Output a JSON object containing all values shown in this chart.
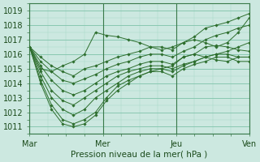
{
  "bg_color": "#cce8e0",
  "grid_color_major": "#88c8b0",
  "grid_color_minor": "#aad8c8",
  "line_color": "#2d6e2d",
  "marker_color": "#2d6e2d",
  "xlabel": "Pression niveau de la mer( hPa )",
  "ylim": [
    1010.5,
    1019.5
  ],
  "yticks": [
    1011,
    1012,
    1013,
    1014,
    1015,
    1016,
    1017,
    1018,
    1019
  ],
  "xlim": [
    0,
    288
  ],
  "day_positions": [
    0,
    96,
    192,
    288
  ],
  "day_labels": [
    "Mar",
    "Mer",
    "Jeu",
    "Ven"
  ],
  "series": [
    [
      1016.5,
      1015.8,
      1015.2,
      1014.8,
      1014.5,
      1015.0,
      1015.2,
      1015.5,
      1015.8,
      1016.0,
      1016.2,
      1016.5,
      1016.5,
      1016.3,
      1016.8,
      1017.2,
      1017.8,
      1018.0,
      1018.2,
      1018.5,
      1018.8
    ],
    [
      1016.5,
      1015.5,
      1014.8,
      1014.2,
      1014.0,
      1014.3,
      1014.6,
      1015.0,
      1015.3,
      1015.5,
      1015.8,
      1016.0,
      1016.0,
      1015.8,
      1016.2,
      1016.5,
      1017.0,
      1017.3,
      1017.5,
      1017.8,
      1018.0
    ],
    [
      1016.5,
      1015.2,
      1014.2,
      1013.5,
      1013.2,
      1013.5,
      1014.0,
      1014.5,
      1014.8,
      1015.0,
      1015.3,
      1015.5,
      1015.5,
      1015.3,
      1015.8,
      1016.0,
      1016.5,
      1016.6,
      1016.5,
      1016.3,
      1016.2
    ],
    [
      1016.5,
      1014.8,
      1013.5,
      1012.8,
      1012.5,
      1013.0,
      1013.5,
      1014.0,
      1014.5,
      1014.8,
      1015.0,
      1015.2,
      1015.2,
      1015.0,
      1015.3,
      1015.5,
      1015.8,
      1016.0,
      1016.0,
      1015.8,
      1015.8
    ],
    [
      1016.5,
      1014.5,
      1013.0,
      1012.2,
      1011.8,
      1012.2,
      1013.0,
      1013.5,
      1014.0,
      1014.5,
      1014.8,
      1015.0,
      1015.0,
      1014.8,
      1015.2,
      1015.5,
      1015.8,
      1016.0,
      1016.2,
      1016.5,
      1016.8
    ],
    [
      1016.5,
      1014.2,
      1012.5,
      1011.5,
      1011.2,
      1011.5,
      1012.0,
      1013.0,
      1013.8,
      1014.2,
      1014.5,
      1014.8,
      1014.8,
      1014.5,
      1015.0,
      1015.3,
      1015.5,
      1015.8,
      1015.8,
      1015.5,
      1015.5
    ],
    [
      1016.5,
      1014.0,
      1012.2,
      1011.2,
      1011.0,
      1011.2,
      1011.8,
      1012.8,
      1013.5,
      1014.0,
      1014.5,
      1014.8,
      1015.0,
      1015.2,
      1015.8,
      1016.0,
      1015.8,
      1015.6,
      1015.5,
      1015.8,
      1015.8
    ],
    [
      1016.5,
      1015.0,
      1014.8,
      1015.2,
      1015.5,
      1016.0,
      1017.5,
      1017.3,
      1017.2,
      1017.0,
      1016.8,
      1016.5,
      1016.3,
      1016.5,
      1016.8,
      1017.0,
      1016.8,
      1016.5,
      1016.8,
      1017.5,
      1018.5
    ]
  ]
}
